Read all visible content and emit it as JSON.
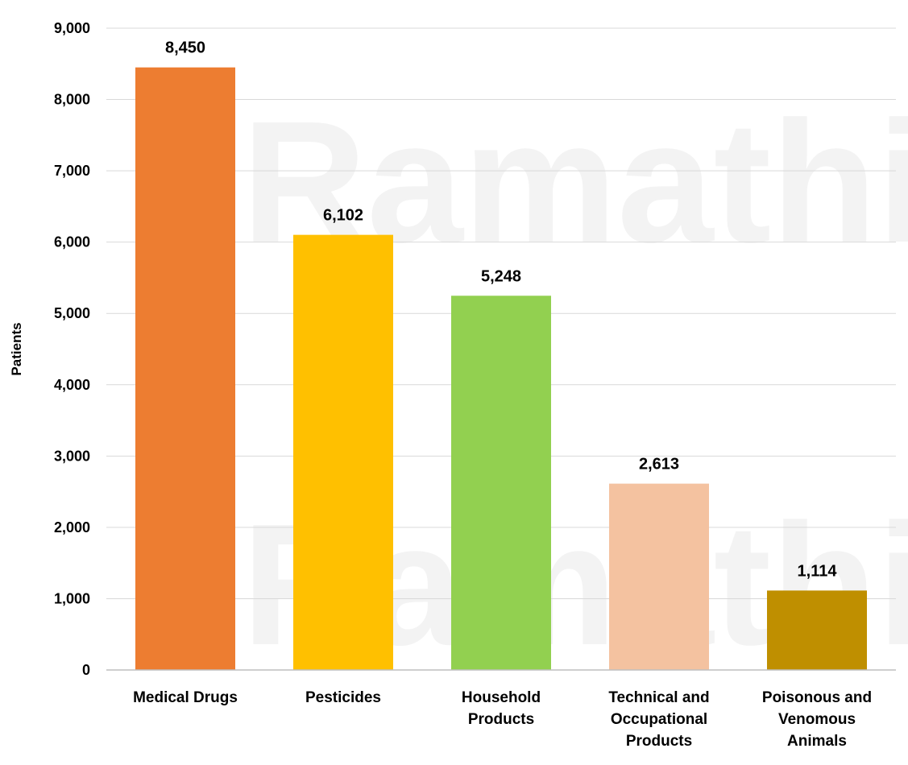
{
  "watermark": "Ramathibodi",
  "chart_data": {
    "type": "bar",
    "categories": [
      "Medical Drugs",
      "Pesticides",
      "Household Products",
      "Technical and Occupational Products",
      "Poisonous and Venomous Animals"
    ],
    "category_lines": [
      [
        "Medical Drugs"
      ],
      [
        "Pesticides"
      ],
      [
        "Household",
        "Products"
      ],
      [
        "Technical and",
        "Occupational",
        "Products"
      ],
      [
        "Poisonous and",
        "Venomous",
        "Animals"
      ]
    ],
    "values": [
      8450,
      6102,
      5248,
      2613,
      1114
    ],
    "value_labels": [
      "8,450",
      "6,102",
      "5,248",
      "2,613",
      "1,114"
    ],
    "colors": [
      "#ED7D31",
      "#FFC000",
      "#92D050",
      "#F4C2A0",
      "#BF8F00"
    ],
    "xlabel": "",
    "ylabel": "Patients",
    "ylim": [
      0,
      9000
    ],
    "yticks": [
      0,
      1000,
      2000,
      3000,
      4000,
      5000,
      6000,
      7000,
      8000,
      9000
    ],
    "ytick_labels": [
      "0",
      "1,000",
      "2,000",
      "3,000",
      "4,000",
      "5,000",
      "6,000",
      "7,000",
      "8,000",
      "9,000"
    ],
    "grid": true,
    "legend": "none"
  }
}
